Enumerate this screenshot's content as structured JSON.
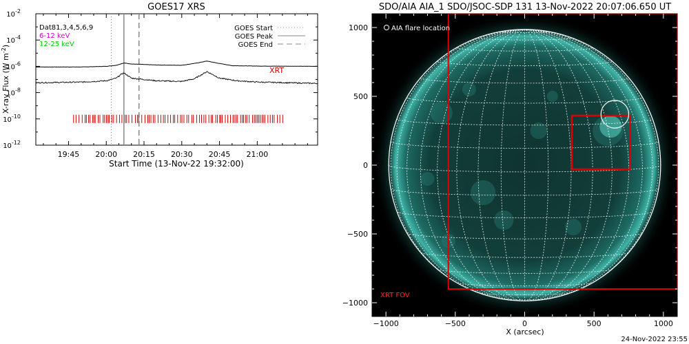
{
  "chart_data": [
    {
      "type": "line",
      "title": "GOES17 XRS",
      "xlabel": "Start Time (13-Nov-22 19:32:00)",
      "ylabel": "X-ray Flux (W m^-2)",
      "ylabel_parts": {
        "main": "X-ray Flux (W m",
        "sup": "-2",
        "close": ")"
      },
      "yscale": "log",
      "ylim_exp": [
        -12,
        -2
      ],
      "ytick_exponents": [
        -12,
        -10,
        -8,
        -6,
        -4,
        -2
      ],
      "ytick_base": "10",
      "xlim": [
        "19:32",
        "21:24"
      ],
      "xticks": [
        "19:45",
        "20:00",
        "20:15",
        "20:30",
        "20:45",
        "21:00"
      ],
      "info_lines": [
        {
          "text": "Dat81,3,4,5,6,9",
          "color": "#000000"
        },
        {
          "text": "6-12 keV",
          "color": "#cc00cc"
        },
        {
          "text": "12-25 keV",
          "color": "#00cc00"
        }
      ],
      "legend": [
        {
          "label": "GOES Start",
          "style": "dotted",
          "time": "20:02"
        },
        {
          "label": "GOES Peak",
          "style": "solid",
          "time": "20:07"
        },
        {
          "label": "GOES End",
          "style": "dashed",
          "time": "20:13"
        }
      ],
      "series": [
        {
          "name": "6-12 keV",
          "color": "#000000",
          "x": [
            "19:32",
            "19:50",
            "20:00",
            "20:04",
            "20:06",
            "20:07",
            "20:10",
            "20:20",
            "20:30",
            "20:36",
            "20:40",
            "20:44",
            "20:50",
            "21:00",
            "21:24"
          ],
          "log10_flux": [
            -6.05,
            -6.05,
            -6.0,
            -5.92,
            -5.8,
            -5.75,
            -5.82,
            -5.9,
            -5.92,
            -5.75,
            -5.6,
            -5.75,
            -5.95,
            -5.98,
            -6.0
          ]
        },
        {
          "name": "12-25 keV",
          "color": "#000000",
          "x": [
            "19:32",
            "19:50",
            "20:00",
            "20:04",
            "20:06",
            "20:07",
            "20:10",
            "20:20",
            "20:30",
            "20:35",
            "20:40",
            "20:45",
            "20:52",
            "21:00",
            "21:24"
          ],
          "log10_flux": [
            -7.25,
            -7.2,
            -7.1,
            -6.9,
            -6.6,
            -6.5,
            -6.9,
            -7.1,
            -7.15,
            -6.95,
            -6.4,
            -6.9,
            -7.1,
            -7.2,
            -7.3
          ]
        }
      ],
      "xrt": {
        "label": "XRT",
        "color": "#cc0000",
        "log10_flux": -10.0,
        "start": "19:47",
        "end": "21:11"
      }
    },
    {
      "type": "heatmap",
      "title": "SDO/AIA AIA_1 SDO/JSOC-SDP 131 13-Nov-2022 20:07:06.650 UT",
      "xlabel": "X (arcsec)",
      "ylabel": "",
      "xlim": [
        -1100,
        1100
      ],
      "ylim": [
        -1100,
        1100
      ],
      "xticks": [
        -1000,
        -500,
        0,
        500,
        1000
      ],
      "yticks": [
        1000,
        500,
        0,
        -500,
        -1000
      ],
      "tick_labels": {
        "x": [
          "−1000",
          "−500",
          "0",
          "500",
          "1000"
        ],
        "y": [
          "1000",
          "500",
          "0",
          "−500",
          "−1000"
        ]
      },
      "solar_radius_arcsec": 980,
      "grid_step_deg": 10,
      "flare_marker": {
        "label": "AIA flare location",
        "x": 650,
        "y": 370,
        "r": 100
      },
      "xrt_fov": {
        "label": "XRT FOV",
        "x0": -550,
        "x1": 1100,
        "y0": -900,
        "y1": 1100,
        "color": "#dd0000"
      },
      "flare_box": {
        "x0": 340,
        "x1": 760,
        "y0": -30,
        "y1": 360,
        "color": "#dd0000"
      }
    }
  ],
  "footer": {
    "timestamp": "24-Nov-2022 23:55"
  }
}
